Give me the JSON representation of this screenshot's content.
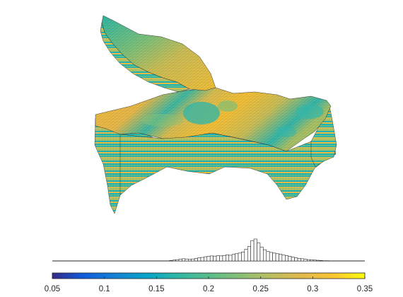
{
  "figure": {
    "colorbar_ticks": [
      "0.05",
      "0.1",
      "0.15",
      "0.2",
      "0.25",
      "0.3",
      "0.35"
    ]
  },
  "chart_data": [
    {
      "type": "surface",
      "surface": "3D layered reservoir grid block colored by cell value",
      "colormap": "parula",
      "clim": [
        0.05,
        0.35
      ],
      "grid": false
    },
    {
      "type": "bar",
      "chart": "histogram",
      "xlim": [
        0.05,
        0.35
      ],
      "bin_width": 0.003,
      "bin_centers": [
        0.164,
        0.167,
        0.17,
        0.173,
        0.176,
        0.179,
        0.182,
        0.185,
        0.188,
        0.191,
        0.194,
        0.197,
        0.2,
        0.203,
        0.206,
        0.209,
        0.212,
        0.215,
        0.218,
        0.221,
        0.224,
        0.227,
        0.23,
        0.233,
        0.236,
        0.239,
        0.242,
        0.245,
        0.248,
        0.251,
        0.254,
        0.257,
        0.26,
        0.263,
        0.266,
        0.269,
        0.272,
        0.275,
        0.278,
        0.281,
        0.284,
        0.287,
        0.29,
        0.293,
        0.296,
        0.299,
        0.302,
        0.305,
        0.308,
        0.311,
        0.314
      ],
      "relative_frequency": [
        0.02,
        0.04,
        0.06,
        0.08,
        0.1,
        0.09,
        0.07,
        0.09,
        0.11,
        0.14,
        0.16,
        0.19,
        0.21,
        0.23,
        0.22,
        0.24,
        0.23,
        0.25,
        0.28,
        0.26,
        0.3,
        0.33,
        0.36,
        0.41,
        0.53,
        0.66,
        0.93,
        1.0,
        0.82,
        0.63,
        0.51,
        0.43,
        0.39,
        0.36,
        0.33,
        0.3,
        0.27,
        0.24,
        0.21,
        0.17,
        0.14,
        0.12,
        0.1,
        0.08,
        0.06,
        0.05,
        0.04,
        0.03,
        0.02,
        0.01,
        0.01
      ],
      "grid": false
    }
  ]
}
